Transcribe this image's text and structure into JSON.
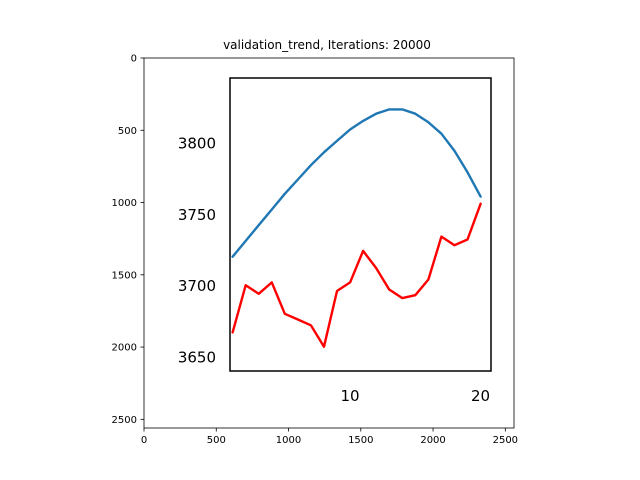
{
  "chart_data": {
    "title": "validation_trend, Iterations: 20000",
    "outer_axes": {
      "type": "image",
      "xlim": [
        0,
        2560
      ],
      "ylim": [
        2560,
        0
      ],
      "x_ticks": [
        0,
        500,
        1000,
        1500,
        2000,
        2500
      ],
      "y_ticks": [
        0,
        500,
        1000,
        1500,
        2000,
        2500
      ]
    },
    "inner_plot": {
      "type": "line",
      "xlim": [
        0.8,
        20.8
      ],
      "ylim": [
        3640,
        3845
      ],
      "x_ticks": [
        10,
        20
      ],
      "y_ticks": [
        3650,
        3700,
        3750,
        3800
      ],
      "series": [
        {
          "color": "#1f77b4",
          "x": [
            1,
            2,
            3,
            4,
            5,
            6,
            7,
            8,
            9,
            10,
            11,
            12,
            13,
            14,
            15,
            16,
            17,
            18,
            19,
            20
          ],
          "y": [
            3720,
            3731,
            3742,
            3753,
            3764,
            3774,
            3784,
            3793,
            3801,
            3809,
            3815,
            3820,
            3823,
            3823,
            3820,
            3814,
            3806,
            3794,
            3779,
            3762
          ]
        },
        {
          "color": "#ff0000",
          "x": [
            1,
            2,
            3,
            4,
            5,
            6,
            7,
            8,
            9,
            10,
            11,
            12,
            13,
            14,
            15,
            16,
            17,
            18,
            19,
            20
          ],
          "y": [
            3667,
            3700,
            3694,
            3702,
            3680,
            3676,
            3672,
            3657,
            3696,
            3702,
            3724,
            3712,
            3697,
            3691,
            3693,
            3704,
            3734,
            3728,
            3732,
            3757
          ]
        }
      ]
    }
  }
}
